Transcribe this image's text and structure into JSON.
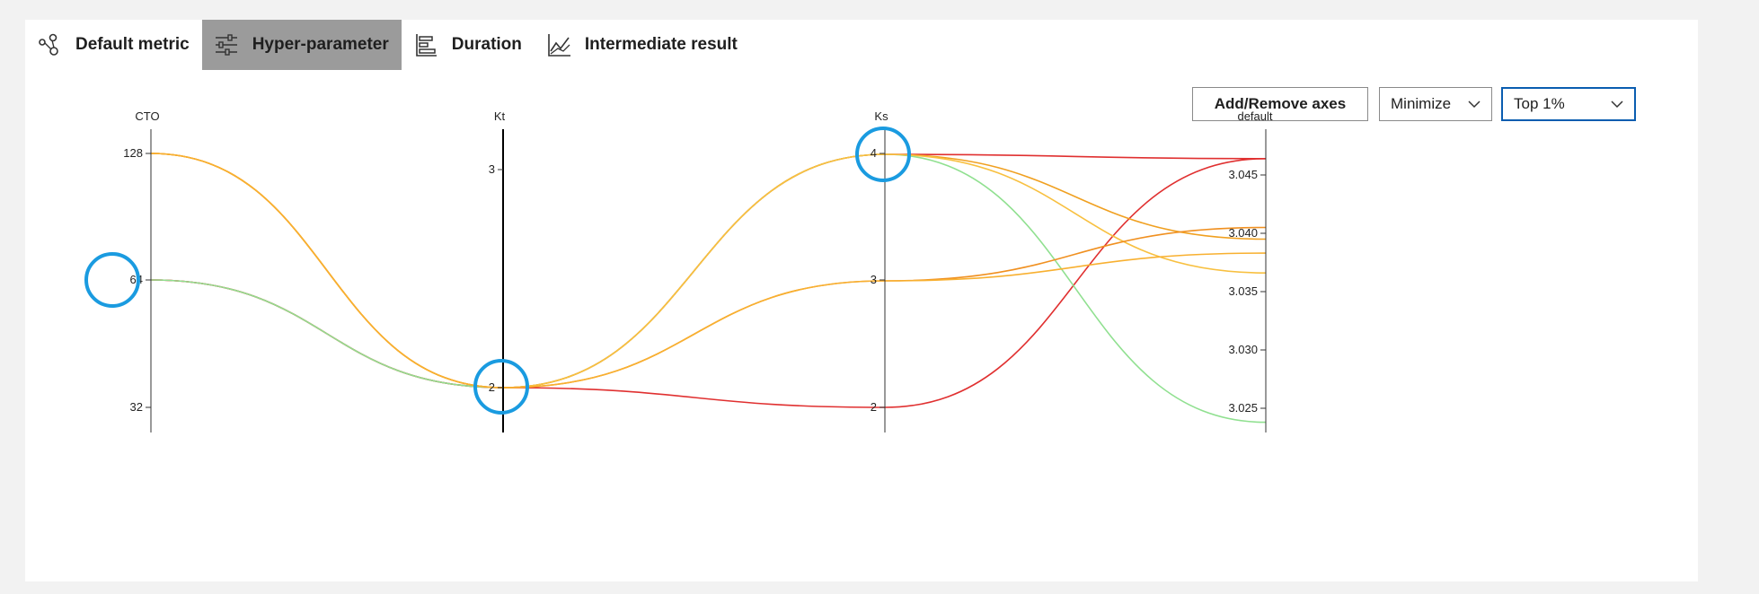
{
  "tabs": [
    {
      "label": "Default metric",
      "icon": "scatter-nodes-icon",
      "active": false
    },
    {
      "label": "Hyper-parameter",
      "icon": "sliders-icon",
      "active": true
    },
    {
      "label": "Duration",
      "icon": "bar-chart-icon",
      "active": false
    },
    {
      "label": "Intermediate result",
      "icon": "line-chart-icon",
      "active": false
    }
  ],
  "controls": {
    "add_remove_axes": "Add/Remove axes",
    "optimize_mode": "Minimize",
    "top_filter": "Top 1%"
  },
  "colors": {
    "active_tab": "#9b9b9b",
    "highlight_circle": "#1a9be0",
    "focus_border": "#0a5db0"
  },
  "chart_data": {
    "type": "parallel_coordinates",
    "axes": [
      {
        "name": "CTO",
        "ticks": [
          "128",
          "64",
          "32"
        ]
      },
      {
        "name": "Kt",
        "ticks": [
          "3",
          "2"
        ]
      },
      {
        "name": "Ks",
        "ticks": [
          "4",
          "3",
          "2"
        ]
      },
      {
        "name": "default",
        "ticks": [
          "3.045",
          "3.040",
          "3.035",
          "3.030",
          "3.025"
        ]
      }
    ],
    "series": [
      {
        "color": "#e03030",
        "values": {
          "CTO": 64,
          "Kt": 2,
          "Ks": 2,
          "default": 3.0464
        }
      },
      {
        "color": "#e03030",
        "values": {
          "CTO": 64,
          "Kt": 2,
          "Ks": 4,
          "default": 3.0464
        }
      },
      {
        "color": "#90e090",
        "values": {
          "CTO": 64,
          "Kt": 2,
          "Ks": 4,
          "default": 3.0238
        }
      },
      {
        "color": "#f0a020",
        "values": {
          "CTO": 128,
          "Kt": 2,
          "Ks": 4,
          "default": 3.0395
        }
      },
      {
        "color": "#f8c040",
        "values": {
          "CTO": 128,
          "Kt": 2,
          "Ks": 4,
          "default": 3.0366
        }
      },
      {
        "color": "#f09020",
        "values": {
          "CTO": 128,
          "Kt": 2,
          "Ks": 3,
          "default": 3.0405
        }
      },
      {
        "color": "#f8b030",
        "values": {
          "CTO": 128,
          "Kt": 2,
          "Ks": 3,
          "default": 3.0383
        }
      }
    ],
    "highlighted_ticks": [
      "CTO:64",
      "Kt:2",
      "Ks:4"
    ]
  }
}
